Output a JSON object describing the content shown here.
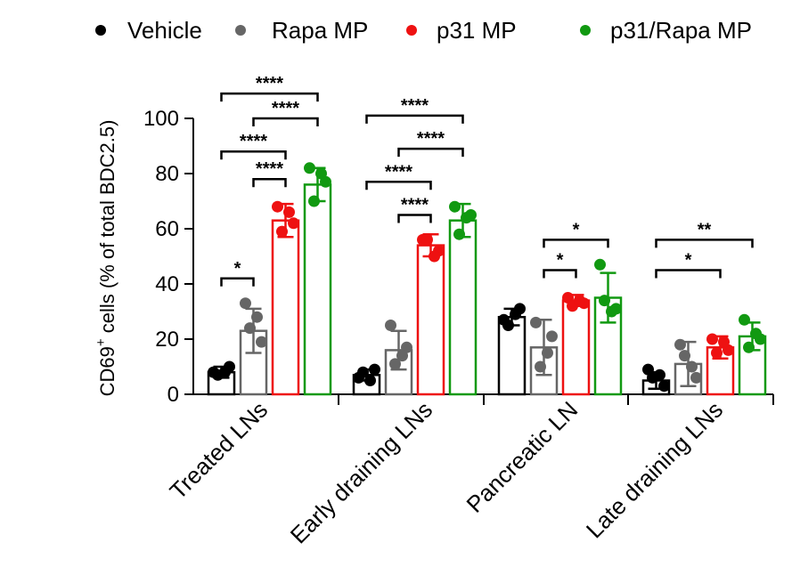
{
  "chart_data": {
    "type": "bar",
    "ylabel": {
      "main": "CD69",
      "sup": "+",
      "rest": " cells (% of total BDC2.5)"
    },
    "ylim": [
      0,
      100
    ],
    "yticks": [
      "0",
      "20",
      "40",
      "60",
      "80",
      "100"
    ],
    "categories": [
      "Treated LNs",
      "Early draining LNs",
      "Pancreatic LN",
      "Late draining LNs"
    ],
    "series": [
      {
        "name": "Vehicle",
        "color": "#000000",
        "values": [
          8,
          7,
          28,
          5
        ],
        "sd": [
          2,
          2,
          3,
          3
        ],
        "points": [
          [
            8,
            10,
            7,
            8
          ],
          [
            6,
            9,
            8,
            5
          ],
          [
            27,
            31,
            25,
            29
          ],
          [
            9,
            3,
            6,
            7
          ]
        ]
      },
      {
        "name": "Rapa MP",
        "color": "#666666",
        "values": [
          23,
          16,
          17,
          11
        ],
        "sd": [
          8,
          7,
          10,
          8
        ],
        "points": [
          [
            33,
            19,
            24,
            28
          ],
          [
            25,
            17,
            11,
            14
          ],
          [
            26,
            21,
            10,
            15
          ],
          [
            18,
            6,
            14,
            10
          ]
        ]
      },
      {
        "name": "p31 MP",
        "color": "#ee1111",
        "values": [
          63,
          54,
          34,
          17
        ],
        "sd": [
          6,
          4,
          2,
          4
        ],
        "points": [
          [
            68,
            62,
            59,
            66
          ],
          [
            56,
            52,
            56,
            50
          ],
          [
            35,
            33,
            32,
            34
          ],
          [
            20,
            16,
            15,
            19
          ]
        ]
      },
      {
        "name": "p31/Rapa MP",
        "color": "#119911",
        "values": [
          76,
          63,
          35,
          21
        ],
        "sd": [
          6,
          6,
          9,
          5
        ],
        "points": [
          [
            82,
            77,
            70,
            80
          ],
          [
            68,
            65,
            58,
            64
          ],
          [
            47,
            31,
            34,
            30
          ],
          [
            27,
            20,
            17,
            22
          ]
        ]
      }
    ],
    "significance": [
      {
        "cat": 0,
        "from": 0,
        "to": 1,
        "label": "*",
        "y": 42
      },
      {
        "cat": 0,
        "from": 1,
        "to": 2,
        "label": "****",
        "y": 78
      },
      {
        "cat": 0,
        "from": 0,
        "to": 2,
        "label": "****",
        "y": 88
      },
      {
        "cat": 0,
        "from": 1,
        "to": 3,
        "label": "****",
        "y": 100
      },
      {
        "cat": 0,
        "from": 0,
        "to": 3,
        "label": "****",
        "y": 109
      },
      {
        "cat": 1,
        "from": 1,
        "to": 2,
        "label": "****",
        "y": 65
      },
      {
        "cat": 1,
        "from": 0,
        "to": 2,
        "label": "****",
        "y": 77
      },
      {
        "cat": 1,
        "from": 1,
        "to": 3,
        "label": "****",
        "y": 89
      },
      {
        "cat": 1,
        "from": 0,
        "to": 3,
        "label": "****",
        "y": 101
      },
      {
        "cat": 2,
        "from": 1,
        "to": 2,
        "label": "*",
        "y": 45
      },
      {
        "cat": 2,
        "from": 1,
        "to": 3,
        "label": "*",
        "y": 56
      },
      {
        "cat": 3,
        "from": 0,
        "to": 2,
        "label": "*",
        "y": 45
      },
      {
        "cat": 3,
        "from": 0,
        "to": 3,
        "label": "**",
        "y": 56
      }
    ],
    "legend_position": "top"
  }
}
